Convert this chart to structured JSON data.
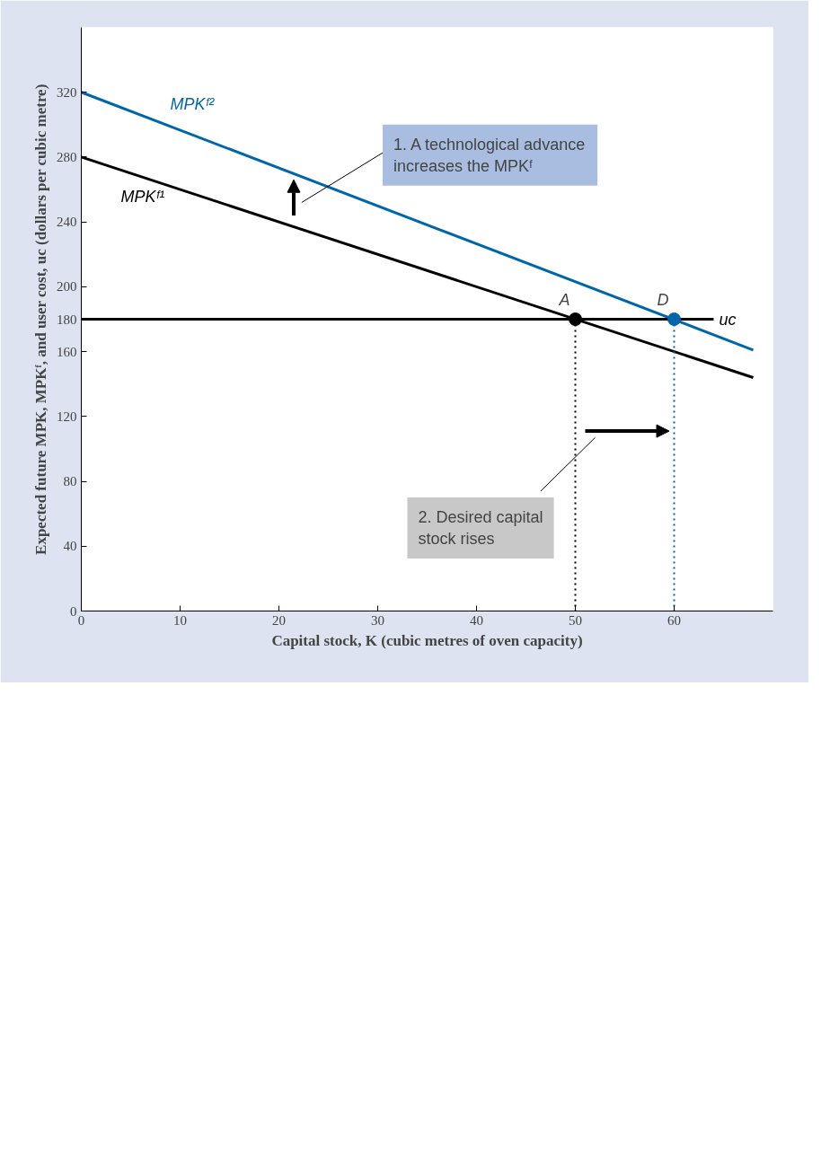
{
  "chart_data": {
    "type": "line",
    "xlabel": "Capital stock, K (cubic metres of oven capacity)",
    "ylabel": "Expected future MPK, MPKᶠ, and user cost, uc (dollars per cubic metre)",
    "xlim": [
      0,
      70
    ],
    "xticks": [
      0,
      10,
      20,
      30,
      40,
      50,
      60
    ],
    "ylim": [
      0,
      360
    ],
    "yticks": [
      0,
      40,
      80,
      120,
      160,
      180,
      200,
      240,
      280,
      320
    ],
    "grid": false,
    "legend": false,
    "series": [
      {
        "name": "MPKᶠ¹",
        "color": "#000000",
        "x": [
          0,
          68
        ],
        "values": [
          280,
          144
        ]
      },
      {
        "name": "MPKᶠ²",
        "color": "#0066aa",
        "x": [
          0,
          68
        ],
        "values": [
          320,
          161
        ]
      },
      {
        "name": "uc",
        "color": "#000000",
        "x": [
          0,
          64
        ],
        "values": [
          180,
          180
        ]
      },
      {
        "type": "line",
        "line_style": "dotted",
        "color": "#000000",
        "x": [
          50,
          50
        ],
        "values": [
          180,
          0
        ]
      },
      {
        "type": "line",
        "line_style": "dotted",
        "color": "#0066aa",
        "x": [
          60,
          60
        ],
        "values": [
          180,
          0
        ]
      },
      {
        "type": "scatter",
        "marker": "circle",
        "color": "#000000",
        "x": [
          50
        ],
        "values": [
          180
        ]
      },
      {
        "type": "scatter",
        "marker": "circle",
        "color": "#0066aa",
        "x": [
          60
        ],
        "values": [
          180
        ]
      }
    ],
    "annotations": [
      "1. A technological advance increases the MPKᶠ",
      "2. Desired capital stock rises",
      {
        "text": "A",
        "x": 50,
        "y": 180
      },
      {
        "text": "D",
        "x": 60,
        "y": 180
      }
    ]
  }
}
